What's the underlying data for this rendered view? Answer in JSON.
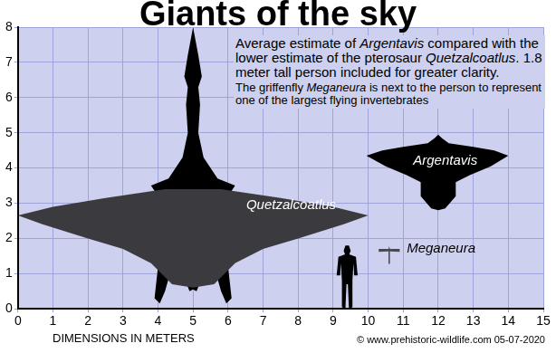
{
  "chart_data": {
    "type": "silhouette",
    "title": "Giants of the sky",
    "subtitle": "Average estimate of Argentavis compared with the lower estimate of the pterosaur Quetzalcoatlus. 1.8 meter tall person included for greater clarity.",
    "note": "The griffenfly Meganeura is next to the person to represent one of the largest flying invertebrates",
    "x_label": "DIMENSIONS IN METERS",
    "source": "© www.prehistoric-wildlife.com 05-07-2020",
    "xlim": [
      0,
      15
    ],
    "ylim": [
      0,
      8
    ],
    "xticks": [
      0,
      1,
      2,
      3,
      4,
      5,
      6,
      7,
      8,
      9,
      10,
      11,
      12,
      13,
      14,
      15
    ],
    "yticks": [
      0,
      1,
      2,
      3,
      4,
      5,
      6,
      7,
      8
    ],
    "grid": true,
    "series": [
      {
        "name": "Quetzalcoatlus",
        "parts": [
          {
            "color": "#3a3a3f",
            "x": [
              0,
              1,
              2.5,
              4.2,
              5.8,
              7.5,
              9,
              10,
              9.3,
              8,
              7,
              6.2,
              5.6,
              5,
              4.4,
              3.8,
              3,
              2,
              0.7,
              0
            ],
            "values": [
              2.65,
              2.9,
              3.15,
              3.4,
              3.4,
              3.15,
              2.9,
              2.65,
              2.4,
              2.0,
              1.7,
              1.3,
              0.7,
              0.6,
              0.7,
              1.3,
              1.7,
              2.0,
              2.4,
              2.65
            ]
          },
          {
            "color": "#000000",
            "x": [
              5,
              5.15,
              5.25,
              5.15,
              5.2,
              5.15,
              5.3,
              5.7,
              6.2,
              6.0,
              5.6,
              5.7,
              6.0,
              6.1,
              5.95,
              5.8,
              5.6,
              5.3,
              5.1,
              5.0,
              4.9,
              4.7,
              4.4,
              4.2,
              4.05,
              3.9,
              4.0,
              4.3,
              4.4,
              4.0,
              3.8,
              4.3,
              4.7,
              4.85,
              4.8,
              4.85,
              4.75,
              4.85,
              5
            ],
            "values": [
              8.0,
              7.2,
              6.6,
              6.3,
              5.8,
              5.0,
              4.3,
              3.7,
              3.5,
              3.2,
              3.0,
              2.0,
              1.2,
              0.3,
              0.15,
              0.5,
              1.2,
              1.0,
              0.5,
              0.55,
              0.5,
              1.0,
              1.2,
              0.5,
              0.15,
              0.3,
              1.2,
              2.0,
              3.0,
              3.2,
              3.5,
              3.7,
              4.3,
              5.0,
              5.8,
              6.3,
              6.6,
              7.2,
              8.0
            ]
          }
        ]
      },
      {
        "name": "Argentavis",
        "parts": [
          {
            "color": "#000000",
            "x": [
              9.95,
              10.4,
              11,
              11.7,
              11.9,
              12,
              12.1,
              12.3,
              13,
              13.6,
              14,
              13.5,
              12.9,
              12.5,
              12.5,
              12.2,
              12,
              11.8,
              11.5,
              11.5,
              11.1,
              10.5,
              9.95
            ],
            "values": [
              4.35,
              4.5,
              4.6,
              4.7,
              4.85,
              4.95,
              4.85,
              4.7,
              4.6,
              4.5,
              4.35,
              4.05,
              3.8,
              3.6,
              3.2,
              2.85,
              2.8,
              2.85,
              3.2,
              3.6,
              3.8,
              4.05,
              4.35
            ]
          }
        ]
      },
      {
        "parts": [
          {
            "color": "#000000",
            "x": [
              9.35,
              9.45,
              9.5,
              9.46,
              9.65,
              9.7,
              9.6,
              9.58,
              9.55,
              9.55,
              9.45,
              9.42,
              9.38,
              9.35,
              9.25,
              9.25,
              9.22,
              9.2,
              9.1,
              9.15,
              9.34,
              9.3,
              9.35
            ],
            "values": [
              1.8,
              1.8,
              1.65,
              1.55,
              1.48,
              0.95,
              0.95,
              1.3,
              0.8,
              0.05,
              0.0,
              0.7,
              0.7,
              0.0,
              0.05,
              0.8,
              1.3,
              0.95,
              0.95,
              1.48,
              1.55,
              1.65,
              1.8
            ]
          }
        ]
      },
      {
        "name": "Meganeura",
        "parts": [
          {
            "color": "#4a4a4a",
            "x": [
              10.6,
              10.62,
              10.9,
              10.9,
              10.62,
              10.62,
              10.58,
              10.58,
              10.3,
              10.3,
              10.58,
              10.6
            ],
            "values": [
              1.78,
              1.7,
              1.7,
              1.62,
              1.63,
              1.28,
              1.28,
              1.63,
              1.62,
              1.7,
              1.7,
              1.78
            ]
          }
        ]
      }
    ],
    "annotations": [
      {
        "text": "Quetzalcoatlus",
        "x": 7.8,
        "y": 2.95
      },
      {
        "text": "Argentavis",
        "x": 12.2,
        "y": 4.2
      },
      {
        "text": "Meganeura",
        "x": 11.1,
        "y": 1.7
      }
    ]
  }
}
